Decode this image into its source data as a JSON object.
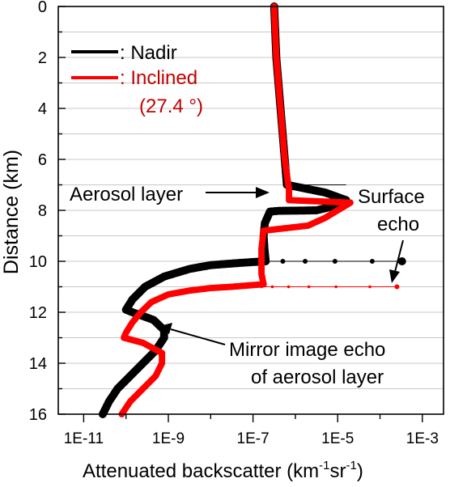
{
  "chart_data": {
    "type": "scatter",
    "xlabel": "Attenuated backscatter (km",
    "xlabel_sup1": "-1",
    "xlabel_mid": "sr",
    "xlabel_sup2": "-1",
    "xlabel_end": ")",
    "ylabel": "Distance (km)",
    "x_scale": "log",
    "x_ticks": [
      {
        "label": "1E-11",
        "exp": -11
      },
      {
        "label": "1E-9",
        "exp": -9
      },
      {
        "label": "1E-7",
        "exp": -7
      },
      {
        "label": "1E-5",
        "exp": -5
      },
      {
        "label": "1E-3",
        "exp": -3
      }
    ],
    "y_ticks": [
      "0",
      "2",
      "4",
      "6",
      "8",
      "10",
      "12",
      "14",
      "16"
    ],
    "y_reversed": true,
    "ylim": [
      0,
      16
    ],
    "grid": "horizontal",
    "legend": {
      "nadir": ": Nadir",
      "inclined": ": Inclined",
      "angle": "(27.4 °)"
    },
    "annotations": {
      "aerosol": "Aerosol layer",
      "surface_1": "Surface",
      "surface_2": "echo",
      "mirror_1": "Mirror image echo",
      "mirror_2": "of aerosol layer"
    },
    "colors": {
      "nadir": "#000000",
      "inclined": "#ff0000",
      "inclined_text": "#c00000"
    },
    "series": [
      {
        "name": "Nadir",
        "color": "#000000",
        "points": [
          [
            0,
            -6.5
          ],
          [
            2,
            -6.45
          ],
          [
            4,
            -6.35
          ],
          [
            6,
            -6.25
          ],
          [
            7,
            -6.2
          ],
          [
            7.3,
            -5.3
          ],
          [
            7.6,
            -4.8
          ],
          [
            7.8,
            -5.0
          ],
          [
            8.0,
            -5.5
          ],
          [
            8.02,
            -6.4
          ],
          [
            8.05,
            -6.6
          ],
          [
            8.5,
            -6.72
          ],
          [
            9.0,
            -6.75
          ],
          [
            9.5,
            -6.73
          ],
          [
            10.0,
            -6.7
          ],
          [
            10.05,
            -7.2
          ],
          [
            10.1,
            -7.6
          ],
          [
            10.15,
            -8.0
          ],
          [
            10.3,
            -8.5
          ],
          [
            10.6,
            -9.1
          ],
          [
            11.0,
            -9.55
          ],
          [
            11.5,
            -9.85
          ],
          [
            11.9,
            -10.0
          ],
          [
            12.0,
            -9.85
          ],
          [
            12.3,
            -9.35
          ],
          [
            12.7,
            -9.1
          ],
          [
            13.0,
            -9.1
          ],
          [
            13.5,
            -9.3
          ],
          [
            14.0,
            -9.6
          ],
          [
            14.5,
            -9.9
          ],
          [
            15.0,
            -10.2
          ],
          [
            15.5,
            -10.4
          ],
          [
            16.0,
            -10.55
          ]
        ]
      },
      {
        "name": "Inclined",
        "color": "#ff0000",
        "points": [
          [
            0,
            -6.5
          ],
          [
            2,
            -6.45
          ],
          [
            4,
            -6.35
          ],
          [
            6,
            -6.25
          ],
          [
            7.2,
            -6.15
          ],
          [
            7.6,
            -6.15
          ],
          [
            7.7,
            -4.7
          ],
          [
            7.9,
            -4.9
          ],
          [
            8.3,
            -5.3
          ],
          [
            8.6,
            -5.7
          ],
          [
            8.8,
            -6.75
          ],
          [
            9.5,
            -6.8
          ],
          [
            10.5,
            -6.8
          ],
          [
            10.9,
            -6.75
          ],
          [
            11.0,
            -7.5
          ],
          [
            11.05,
            -8.0
          ],
          [
            11.15,
            -8.5
          ],
          [
            11.3,
            -9.0
          ],
          [
            11.6,
            -9.4
          ],
          [
            12.0,
            -9.65
          ],
          [
            12.4,
            -9.85
          ],
          [
            12.8,
            -10.0
          ],
          [
            13.0,
            -10.05
          ],
          [
            13.2,
            -9.6
          ],
          [
            13.6,
            -9.15
          ],
          [
            14.0,
            -9.15
          ],
          [
            14.5,
            -9.3
          ],
          [
            15.0,
            -9.6
          ],
          [
            15.5,
            -9.9
          ],
          [
            16.0,
            -10.1
          ]
        ]
      }
    ],
    "surface_echo": {
      "nadir": {
        "distance": 10.0,
        "start_exp": -7.0,
        "peak_exp": -3.48
      },
      "inclined": {
        "distance": 11.0,
        "start_exp": -6.8,
        "peak_exp": -3.6
      }
    }
  }
}
